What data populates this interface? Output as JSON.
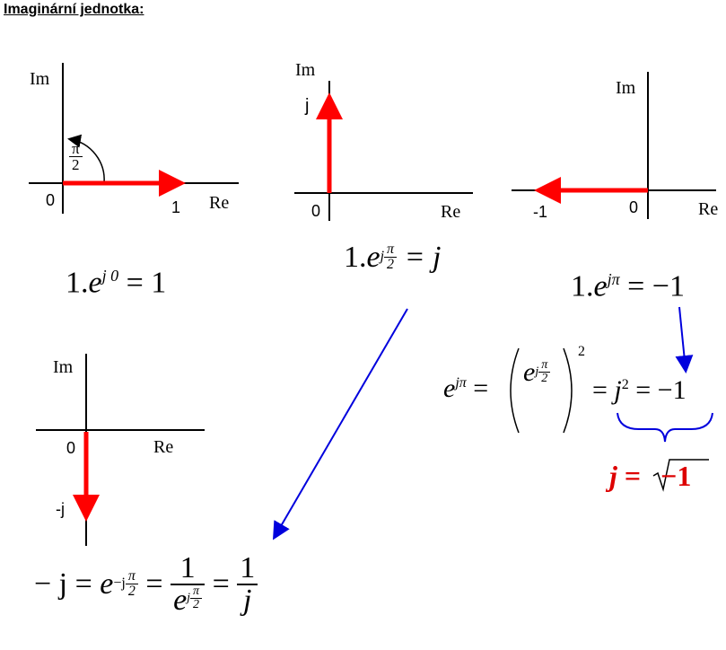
{
  "title": "Imaginární jednotka:",
  "axes": {
    "im": "Im",
    "re": "Re",
    "zero": "0"
  },
  "diagram1": {
    "angle_num": "π",
    "angle_den": "2",
    "tip_label": "1"
  },
  "diagram2": {
    "tip_label": "j"
  },
  "diagram3": {
    "tip_label": "-1"
  },
  "diagram4": {
    "tip_label": "-j"
  },
  "eq1": {
    "lhs": "1.",
    "base": "e",
    "exp": "j 0",
    "rhs": "= 1"
  },
  "eq2": {
    "lhs": "1.",
    "base": "e",
    "exp_j": "j",
    "exp_num": "π",
    "exp_den": "2",
    "rhs": "= j"
  },
  "eq3": {
    "lhs": "1.",
    "base": "e",
    "exp": "jπ",
    "rhs": "= −1"
  },
  "eq4": {
    "lhs_base": "e",
    "lhs_exp": "jπ",
    "eq": "=",
    "in_base": "e",
    "in_exp_j": "j",
    "in_num": "π",
    "in_den": "2",
    "outer_exp": "2",
    "mid": "=",
    "j_base": "j",
    "j_exp": "2",
    "rhs": "= −1"
  },
  "eq5": {
    "lhs": "j",
    "eq": "=",
    "radicand": "−1"
  },
  "eq6": {
    "lhs": "− j =",
    "base": "e",
    "exp_pre": "−j",
    "exp_num": "π",
    "exp_den": "2",
    "eq1": "=",
    "f1_num": "1",
    "f1_den_base": "e",
    "f1_den_exp_j": "j",
    "f1_den_num": "π",
    "f1_den_den": "2",
    "eq2": "=",
    "f2_num": "1",
    "f2_den": "j"
  },
  "colors": {
    "vector": "#ff0000",
    "annotation": "#0000dd",
    "result": "#dd0000"
  }
}
